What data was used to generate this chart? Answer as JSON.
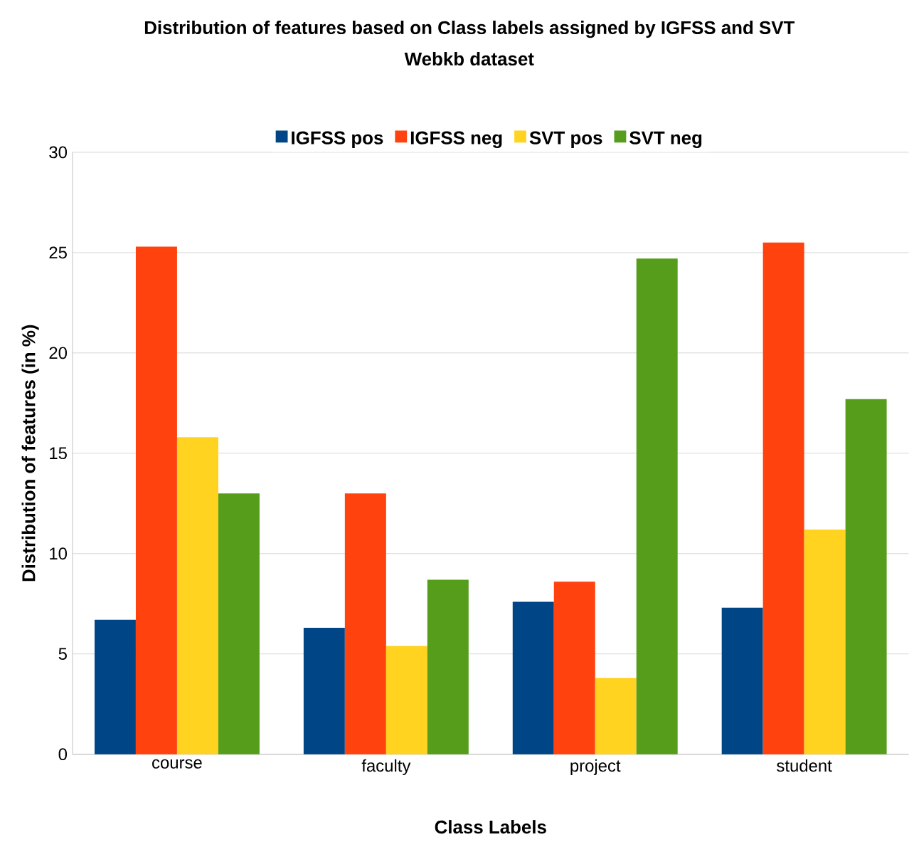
{
  "chart_data": {
    "type": "bar",
    "title": "Distribution of features based on Class labels assigned by IGFSS and SVT",
    "subtitle": "Webkb dataset",
    "xlabel": "Class Labels",
    "ylabel": "Distribution of features (in %)",
    "categories": [
      "course",
      "faculty",
      "project",
      "student"
    ],
    "series": [
      {
        "name": "IGFSS pos",
        "color": "#004586",
        "values": [
          6.7,
          6.3,
          7.6,
          7.3
        ]
      },
      {
        "name": "IGFSS neg",
        "color": "#ff420e",
        "values": [
          25.3,
          13.0,
          8.6,
          25.5
        ]
      },
      {
        "name": "SVT pos",
        "color": "#ffd320",
        "values": [
          15.8,
          5.4,
          3.8,
          11.2
        ]
      },
      {
        "name": "SVT neg",
        "color": "#579d1c",
        "values": [
          13.0,
          8.7,
          24.7,
          17.7
        ]
      }
    ],
    "ylim": [
      0,
      30
    ],
    "yticks": [
      0,
      5,
      10,
      15,
      20,
      25,
      30
    ],
    "grid": "y",
    "legend": "top"
  }
}
